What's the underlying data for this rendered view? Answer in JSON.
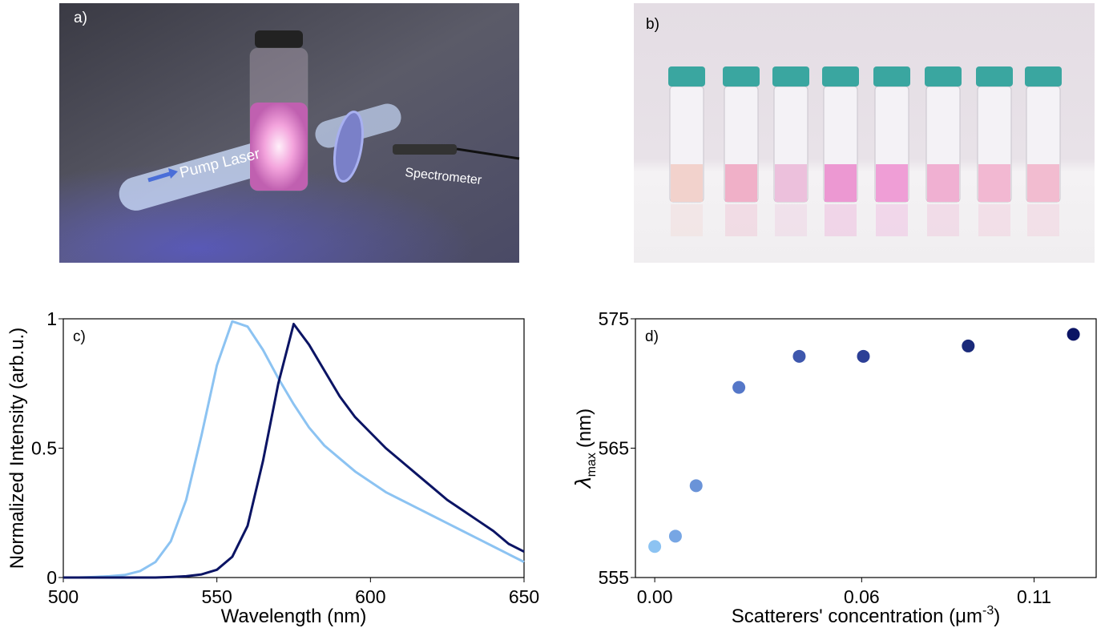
{
  "panels": {
    "a": {
      "label": "a)",
      "annotations": [
        "Pump Laser",
        "Spectrometer"
      ]
    },
    "b": {
      "label": "b)"
    }
  },
  "chart_data": [
    {
      "type": "line",
      "panel_label": "c)",
      "x_label": "Wavelength (nm)",
      "y_label": "Normalized Intensity (arb.u.)",
      "x": [
        500,
        505,
        510,
        515,
        520,
        525,
        530,
        535,
        540,
        545,
        550,
        555,
        560,
        565,
        570,
        575,
        580,
        585,
        590,
        595,
        600,
        605,
        610,
        615,
        620,
        625,
        630,
        635,
        640,
        645,
        650
      ],
      "series": [
        {
          "color": "#8cc3f2",
          "values": [
            0,
            0,
            0.002,
            0.005,
            0.01,
            0.025,
            0.06,
            0.14,
            0.3,
            0.55,
            0.82,
            0.99,
            0.97,
            0.88,
            0.77,
            0.67,
            0.58,
            0.51,
            0.46,
            0.41,
            0.37,
            0.33,
            0.3,
            0.27,
            0.24,
            0.21,
            0.18,
            0.15,
            0.12,
            0.09,
            0.06
          ]
        },
        {
          "color": "#0b1464",
          "values": [
            0,
            0,
            0,
            0,
            0,
            0,
            0,
            0.002,
            0.005,
            0.012,
            0.03,
            0.08,
            0.2,
            0.45,
            0.75,
            0.98,
            0.9,
            0.8,
            0.7,
            0.62,
            0.56,
            0.5,
            0.45,
            0.4,
            0.35,
            0.3,
            0.26,
            0.22,
            0.18,
            0.13,
            0.1
          ]
        }
      ],
      "xlim": [
        500,
        650
      ],
      "xticks": [
        500,
        550,
        600,
        650
      ],
      "ylim": [
        0,
        1
      ],
      "yticks": [
        0,
        0.5,
        1
      ]
    },
    {
      "type": "scatter",
      "panel_label": "d)",
      "x_label": "Scatterers' concentration (μm",
      "x_label_sup": "-3",
      "x_label_end": ")",
      "y_label_symbol": "λ",
      "y_label_sub": "max",
      "y_label_unit": "(nm)",
      "x": [
        0,
        0.006,
        0.012,
        0.0244,
        0.0419,
        0.0605,
        0.0909,
        0.1214
      ],
      "values": [
        557.4,
        558.2,
        562.1,
        569.7,
        572.1,
        572.1,
        572.9,
        573.8
      ],
      "colors": [
        "#8cc3f2",
        "#77a6e4",
        "#6a93d8",
        "#5577c8",
        "#3e57ad",
        "#2c3f96",
        "#1a2a7a",
        "#0b1464"
      ],
      "xlim": [
        -0.0056,
        0.128
      ],
      "xticks": [
        {
          "value": 0,
          "label": "0.00"
        },
        {
          "value": 0.06,
          "label": "0.06"
        },
        {
          "value": 0.11,
          "label": "0.11"
        }
      ],
      "ylim": [
        555,
        575
      ],
      "yticks": [
        555,
        565,
        575
      ]
    }
  ]
}
